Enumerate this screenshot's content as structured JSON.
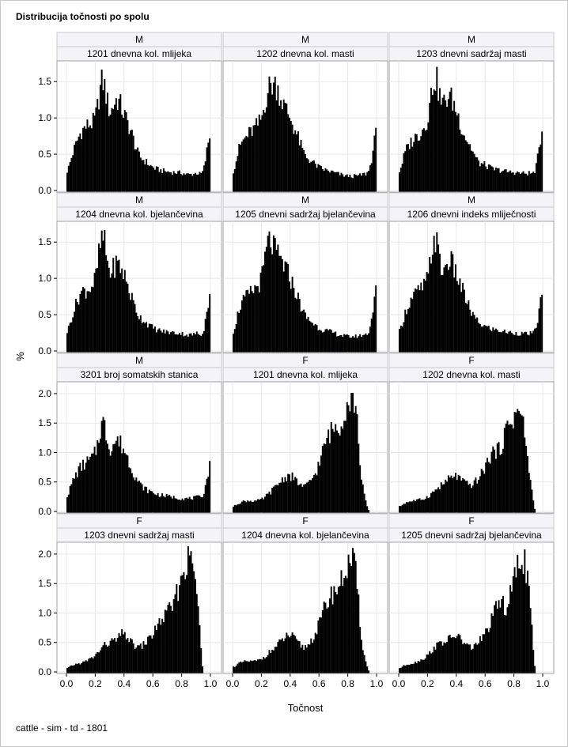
{
  "title": "Distribucija točnosti po spolu",
  "footer": "cattle - sim - td - 1801",
  "chart_data": {
    "type": "bar",
    "xlabel": "Točnost",
    "ylabel": "%",
    "xlim": [
      0,
      1
    ],
    "xticks": [
      "0.0",
      "0.2",
      "0.4",
      "0.6",
      "0.8",
      "1.0"
    ],
    "grid": true,
    "rows": [
      {
        "yticks": [
          "0.0",
          "0.5",
          "1.0",
          "1.5"
        ],
        "ylim": [
          0,
          1.72
        ]
      },
      {
        "yticks": [
          "0.0",
          "0.5",
          "1.0",
          "1.5"
        ],
        "ylim": [
          0,
          1.72
        ]
      },
      {
        "yticks": [
          "0.0",
          "0.5",
          "1.0",
          "1.5",
          "2.0"
        ],
        "ylim": [
          0,
          2.12
        ]
      },
      {
        "yticks": [
          "0.0",
          "0.5",
          "1.0",
          "1.5",
          "2.0"
        ],
        "ylim": [
          0,
          2.12
        ]
      }
    ],
    "panels": [
      {
        "sex": "M",
        "trait": "1201 dnevna kol. mlijeka",
        "shape": "M",
        "x": [
          0.0,
          0.05,
          0.1,
          0.15,
          0.2,
          0.25,
          0.3,
          0.35,
          0.4,
          0.45,
          0.5,
          0.55,
          0.6,
          0.65,
          0.7,
          0.75,
          0.8,
          0.85,
          0.9,
          0.95,
          1.0
        ],
        "y": [
          0.25,
          0.55,
          0.8,
          0.9,
          1.0,
          1.5,
          1.1,
          1.25,
          1.05,
          0.8,
          0.5,
          0.4,
          0.32,
          0.28,
          0.26,
          0.25,
          0.24,
          0.22,
          0.24,
          0.28,
          0.8
        ]
      },
      {
        "sex": "M",
        "trait": "1202 dnevna kol. masti",
        "shape": "M",
        "x": [
          0.0,
          0.05,
          0.1,
          0.15,
          0.2,
          0.25,
          0.3,
          0.35,
          0.4,
          0.45,
          0.5,
          0.55,
          0.6,
          0.65,
          0.7,
          0.75,
          0.8,
          0.85,
          0.9,
          0.95,
          1.0
        ],
        "y": [
          0.25,
          0.6,
          0.75,
          0.85,
          1.0,
          1.4,
          1.45,
          1.2,
          1.0,
          0.75,
          0.5,
          0.4,
          0.32,
          0.28,
          0.25,
          0.22,
          0.2,
          0.2,
          0.22,
          0.3,
          0.8
        ]
      },
      {
        "sex": "M",
        "trait": "1203 dnevni sadržaj masti",
        "shape": "M",
        "x": [
          0.0,
          0.05,
          0.1,
          0.15,
          0.2,
          0.25,
          0.3,
          0.35,
          0.4,
          0.45,
          0.5,
          0.55,
          0.6,
          0.65,
          0.7,
          0.75,
          0.8,
          0.85,
          0.9,
          0.95,
          1.0
        ],
        "y": [
          0.25,
          0.55,
          0.7,
          0.8,
          1.0,
          1.55,
          1.2,
          1.3,
          1.1,
          0.8,
          0.6,
          0.4,
          0.35,
          0.3,
          0.28,
          0.26,
          0.25,
          0.24,
          0.24,
          0.3,
          0.85
        ]
      },
      {
        "sex": "M",
        "trait": "1204 dnevna kol. bjelančevina",
        "shape": "M",
        "x": [
          0.0,
          0.05,
          0.1,
          0.15,
          0.2,
          0.25,
          0.3,
          0.35,
          0.4,
          0.45,
          0.5,
          0.55,
          0.6,
          0.65,
          0.7,
          0.75,
          0.8,
          0.85,
          0.9,
          0.95,
          1.0
        ],
        "y": [
          0.25,
          0.55,
          0.8,
          0.85,
          1.0,
          1.55,
          1.1,
          1.2,
          1.05,
          0.75,
          0.5,
          0.4,
          0.32,
          0.28,
          0.26,
          0.25,
          0.24,
          0.22,
          0.24,
          0.28,
          0.8
        ]
      },
      {
        "sex": "M",
        "trait": "1205 dnevni sadržaj bjelančevina",
        "shape": "M",
        "x": [
          0.0,
          0.05,
          0.1,
          0.15,
          0.2,
          0.25,
          0.3,
          0.35,
          0.4,
          0.45,
          0.5,
          0.55,
          0.6,
          0.65,
          0.7,
          0.75,
          0.8,
          0.85,
          0.9,
          0.95,
          1.0
        ],
        "y": [
          0.25,
          0.6,
          0.75,
          0.85,
          1.0,
          1.5,
          1.35,
          1.2,
          1.0,
          0.75,
          0.5,
          0.4,
          0.32,
          0.28,
          0.25,
          0.22,
          0.2,
          0.2,
          0.22,
          0.3,
          0.85
        ]
      },
      {
        "sex": "M",
        "trait": "1206 dnevni indeks mliječnosti",
        "shape": "M",
        "x": [
          0.0,
          0.05,
          0.1,
          0.15,
          0.2,
          0.25,
          0.3,
          0.35,
          0.4,
          0.45,
          0.5,
          0.55,
          0.6,
          0.65,
          0.7,
          0.75,
          0.8,
          0.85,
          0.9,
          0.95,
          1.0
        ],
        "y": [
          0.25,
          0.55,
          0.75,
          0.85,
          1.0,
          1.55,
          1.1,
          1.25,
          1.05,
          0.8,
          0.55,
          0.4,
          0.34,
          0.3,
          0.28,
          0.26,
          0.25,
          0.24,
          0.24,
          0.3,
          0.8
        ]
      },
      {
        "sex": "M",
        "trait": "3201 broj somatskih stanica",
        "shape": "M",
        "x": [
          0.0,
          0.05,
          0.1,
          0.15,
          0.2,
          0.25,
          0.3,
          0.35,
          0.4,
          0.45,
          0.5,
          0.55,
          0.6,
          0.65,
          0.7,
          0.75,
          0.8,
          0.85,
          0.9,
          0.95,
          1.0
        ],
        "y": [
          0.25,
          0.55,
          0.75,
          0.85,
          1.0,
          1.5,
          1.1,
          1.2,
          1.05,
          0.75,
          0.5,
          0.38,
          0.32,
          0.28,
          0.26,
          0.24,
          0.22,
          0.22,
          0.24,
          0.3,
          0.8
        ]
      },
      {
        "sex": "F",
        "trait": "1201 dnevna kol. mlijeka",
        "shape": "F",
        "x": [
          0.0,
          0.05,
          0.1,
          0.15,
          0.2,
          0.25,
          0.3,
          0.35,
          0.4,
          0.45,
          0.5,
          0.55,
          0.6,
          0.65,
          0.7,
          0.75,
          0.8,
          0.85,
          0.9,
          0.95
        ],
        "y": [
          0.08,
          0.15,
          0.18,
          0.18,
          0.2,
          0.3,
          0.42,
          0.55,
          0.6,
          0.5,
          0.42,
          0.55,
          0.8,
          1.2,
          1.4,
          1.5,
          1.85,
          1.8,
          0.5,
          0.0
        ]
      },
      {
        "sex": "F",
        "trait": "1202 dnevna kol. masti",
        "shape": "F",
        "x": [
          0.0,
          0.05,
          0.1,
          0.15,
          0.2,
          0.25,
          0.3,
          0.35,
          0.4,
          0.45,
          0.5,
          0.55,
          0.6,
          0.65,
          0.7,
          0.75,
          0.8,
          0.85,
          0.9,
          0.95
        ],
        "y": [
          0.08,
          0.15,
          0.18,
          0.2,
          0.25,
          0.35,
          0.45,
          0.55,
          0.6,
          0.5,
          0.45,
          0.55,
          0.75,
          1.0,
          1.05,
          1.4,
          1.6,
          1.65,
          0.8,
          0.0
        ]
      },
      {
        "sex": "F",
        "trait": "1203 dnevni sadržaj masti",
        "shape": "F",
        "x": [
          0.0,
          0.05,
          0.1,
          0.15,
          0.2,
          0.25,
          0.3,
          0.35,
          0.4,
          0.45,
          0.5,
          0.55,
          0.6,
          0.65,
          0.7,
          0.75,
          0.8,
          0.85,
          0.9,
          0.95
        ],
        "y": [
          0.06,
          0.12,
          0.15,
          0.2,
          0.28,
          0.42,
          0.5,
          0.55,
          0.65,
          0.5,
          0.42,
          0.5,
          0.65,
          0.85,
          1.0,
          1.2,
          1.6,
          1.9,
          1.5,
          0.0
        ]
      },
      {
        "sex": "F",
        "trait": "1204 dnevna kol. bjelančevina",
        "shape": "F",
        "x": [
          0.0,
          0.05,
          0.1,
          0.15,
          0.2,
          0.25,
          0.3,
          0.35,
          0.4,
          0.45,
          0.5,
          0.55,
          0.6,
          0.65,
          0.7,
          0.75,
          0.8,
          0.85,
          0.9,
          0.95
        ],
        "y": [
          0.08,
          0.15,
          0.18,
          0.18,
          0.22,
          0.32,
          0.42,
          0.55,
          0.62,
          0.5,
          0.42,
          0.55,
          0.8,
          1.15,
          1.35,
          1.5,
          1.8,
          1.75,
          0.5,
          0.0
        ]
      },
      {
        "sex": "F",
        "trait": "1205 dnevni sadržaj bjelančevina",
        "shape": "F",
        "x": [
          0.0,
          0.05,
          0.1,
          0.15,
          0.2,
          0.25,
          0.3,
          0.35,
          0.4,
          0.45,
          0.5,
          0.55,
          0.6,
          0.65,
          0.7,
          0.75,
          0.8,
          0.85,
          0.9,
          0.95
        ],
        "y": [
          0.06,
          0.12,
          0.15,
          0.2,
          0.28,
          0.42,
          0.5,
          0.55,
          0.62,
          0.5,
          0.42,
          0.5,
          0.65,
          0.9,
          1.2,
          1.1,
          1.55,
          1.95,
          1.5,
          0.0
        ]
      }
    ]
  }
}
